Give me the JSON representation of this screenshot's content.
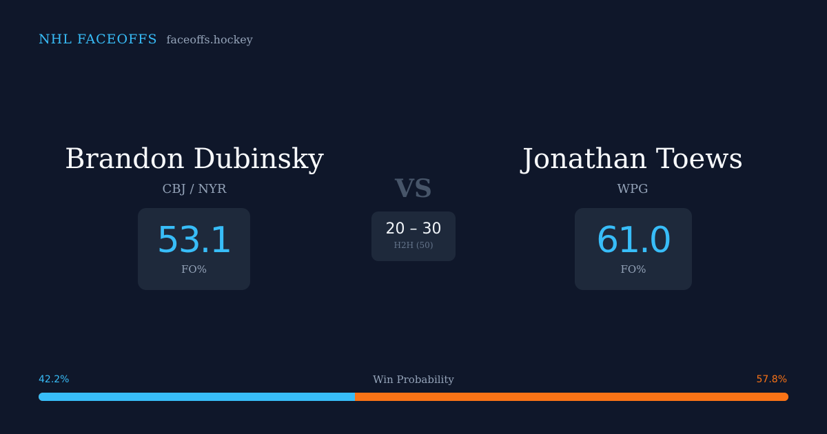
{
  "brand": {
    "title": "NHL FACEOFFS",
    "url": "faceoffs.hockey"
  },
  "player1": {
    "name": "Brandon Dubinsky",
    "team": "CBJ / NYR",
    "fo_pct": "53.1",
    "fo_label": "FO%"
  },
  "player2": {
    "name": "Jonathan Toews",
    "team": "WPG",
    "fo_pct": "61.0",
    "fo_label": "FO%"
  },
  "versus": {
    "label": "VS",
    "h2h_score": "20 – 30",
    "h2h_label": "H2H (50)"
  },
  "win_probability": {
    "title": "Win Probability",
    "left_label": "42.2%",
    "right_label": "57.8%",
    "left_value": 42.2,
    "right_value": 57.8
  },
  "colors": {
    "background": "#0f172a",
    "accent_blue": "#38bdf8",
    "accent_orange": "#f97316",
    "card": "#1e293b"
  }
}
